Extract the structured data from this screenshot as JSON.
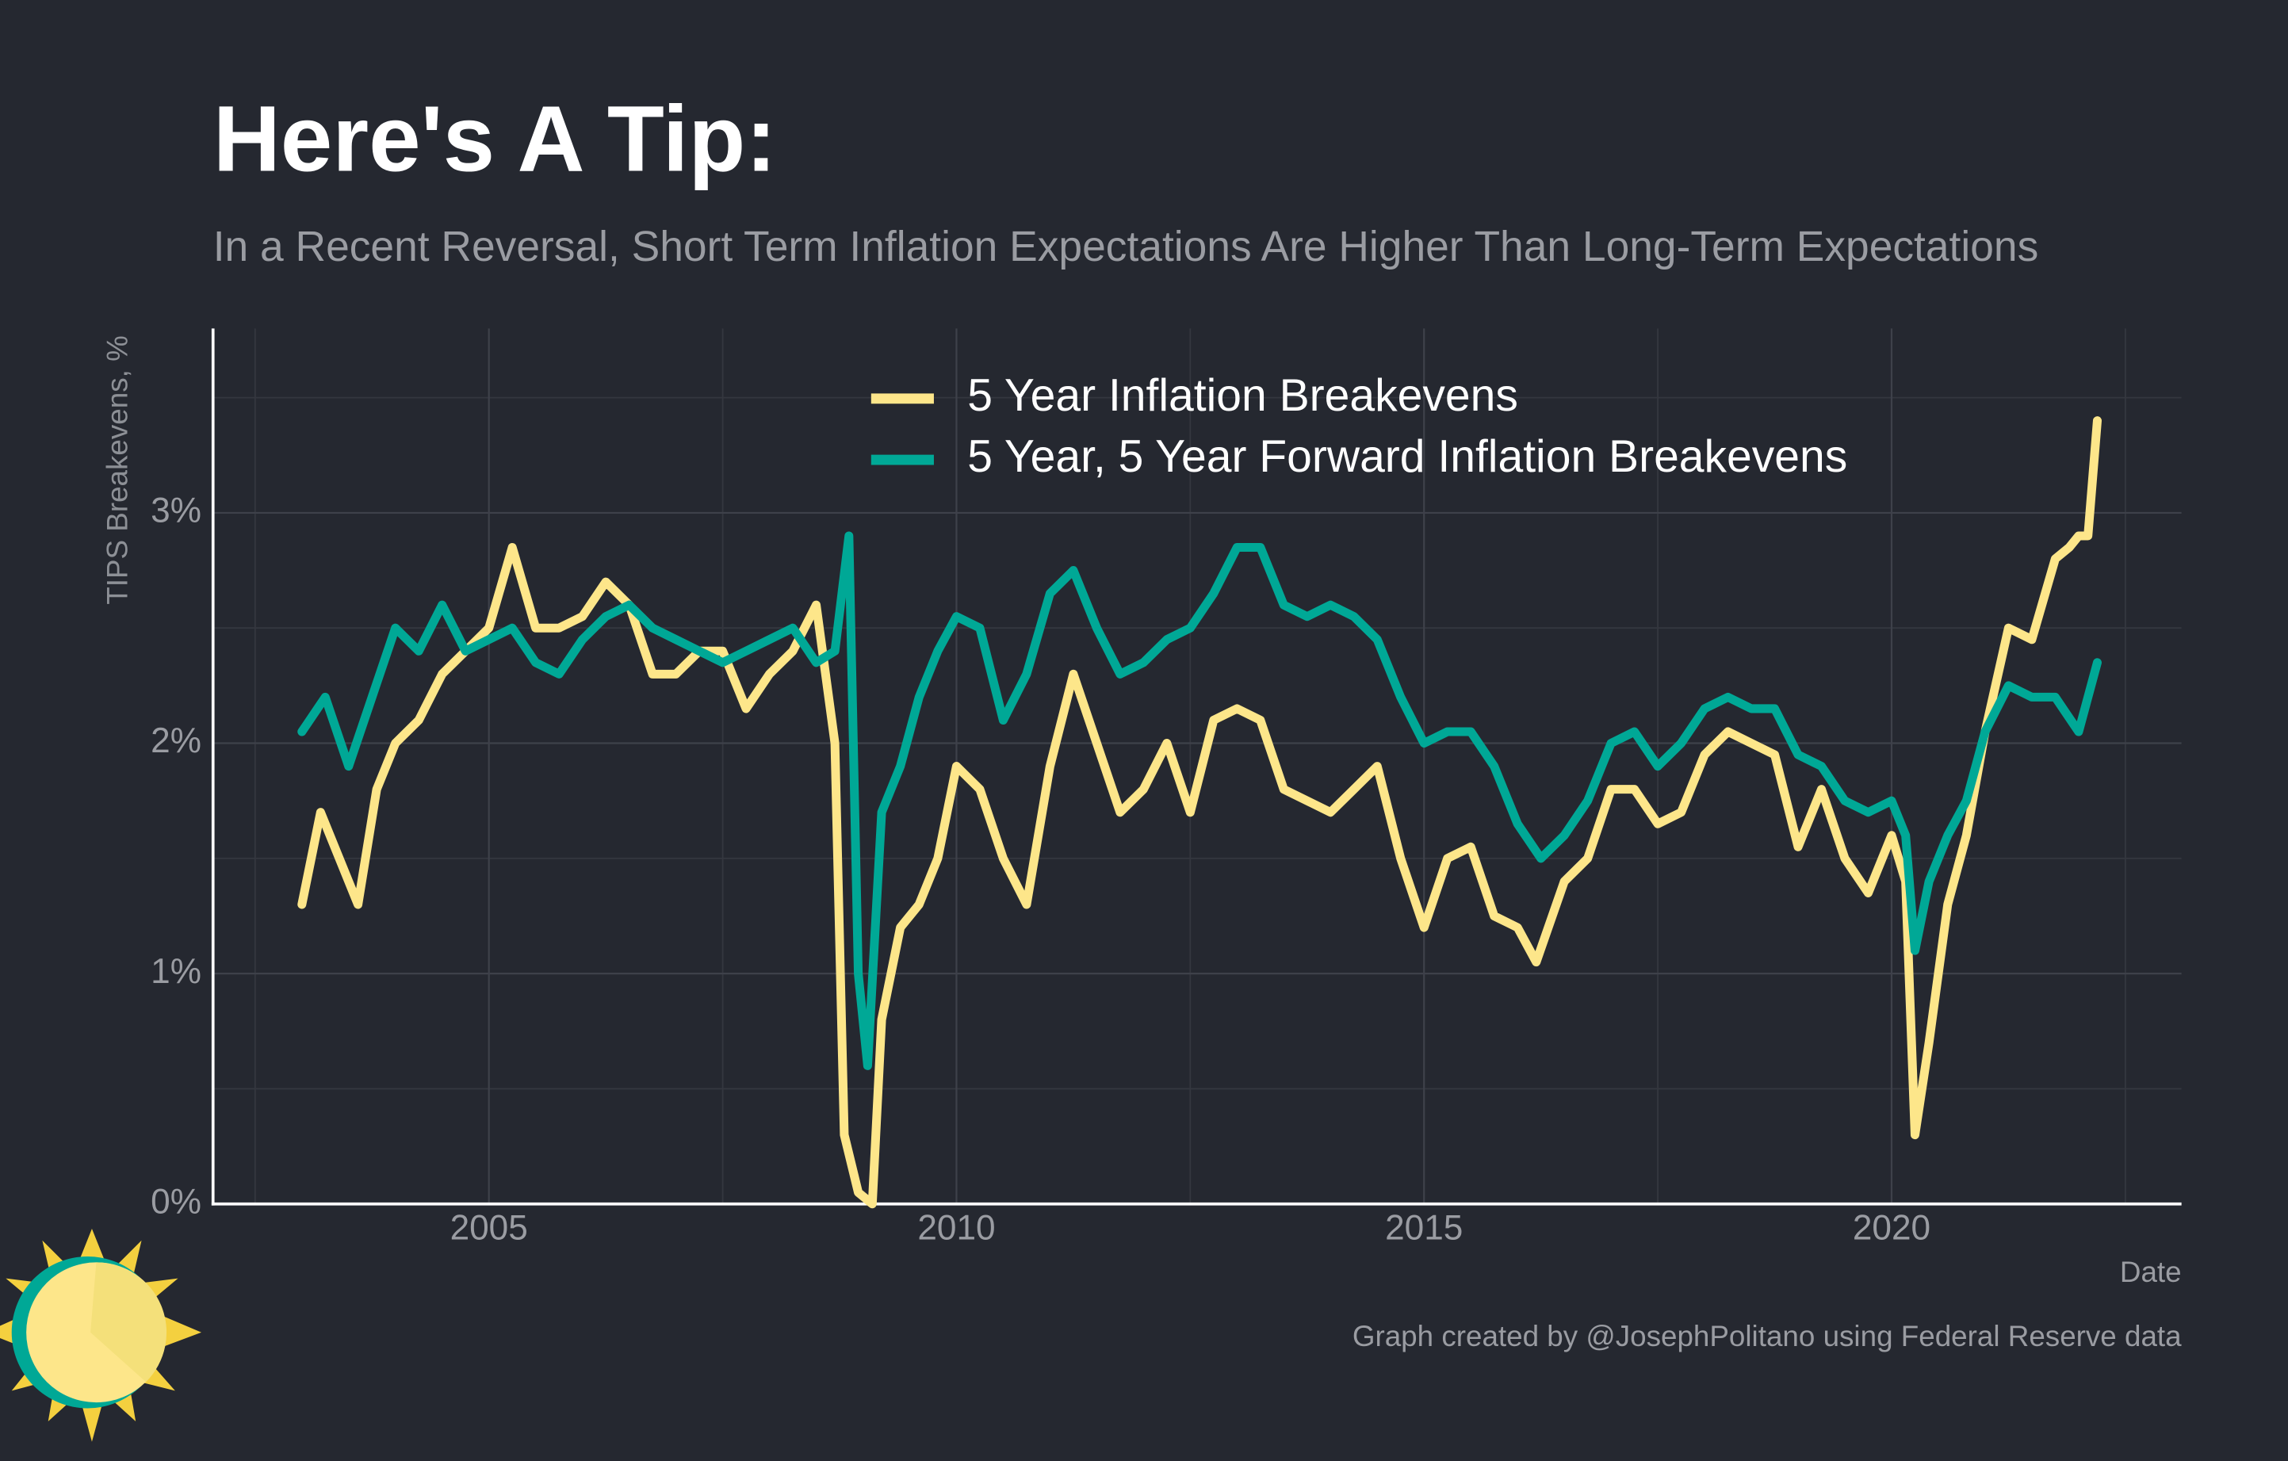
{
  "chart_data": {
    "type": "line",
    "title": "Here's A Tip:",
    "subtitle": "In a Recent Reversal, Short Term Inflation Expectations Are Higher Than Long-Term Expectations",
    "ylabel": "TIPS Breakevens, %",
    "xlabel": "Date",
    "caption": "Graph created by @JosephPolitano using Federal Reserve data",
    "legend": "top",
    "grid": true,
    "xlim": [
      2002.05,
      2023.1
    ],
    "ylim": [
      0,
      3.8
    ],
    "xticks": [
      2005,
      2010,
      2015,
      2020
    ],
    "yticks": [
      {
        "value": 0,
        "label": "0%"
      },
      {
        "value": 1,
        "label": "1%"
      },
      {
        "value": 2,
        "label": "2%"
      },
      {
        "value": 3,
        "label": "3%"
      }
    ],
    "minor_xticks": [
      2002.5,
      2007.5,
      2012.5,
      2017.5,
      2022.5
    ],
    "minor_yticks": [
      0.5,
      1.5,
      2.5,
      3.5
    ],
    "series": [
      {
        "name": "5 Year Inflation Breakevens",
        "color": "#fde68a",
        "x": [
          2003.0,
          2003.2,
          2003.4,
          2003.6,
          2003.8,
          2004.0,
          2004.25,
          2004.5,
          2004.75,
          2005.0,
          2005.25,
          2005.5,
          2005.75,
          2006.0,
          2006.25,
          2006.5,
          2006.75,
          2007.0,
          2007.25,
          2007.5,
          2007.75,
          2008.0,
          2008.25,
          2008.5,
          2008.7,
          2008.8,
          2008.95,
          2009.1,
          2009.2,
          2009.4,
          2009.6,
          2009.8,
          2010.0,
          2010.25,
          2010.5,
          2010.75,
          2011.0,
          2011.25,
          2011.5,
          2011.75,
          2012.0,
          2012.25,
          2012.5,
          2012.75,
          2013.0,
          2013.25,
          2013.5,
          2013.75,
          2014.0,
          2014.25,
          2014.5,
          2014.75,
          2015.0,
          2015.25,
          2015.5,
          2015.75,
          2016.0,
          2016.2,
          2016.5,
          2016.75,
          2017.0,
          2017.25,
          2017.5,
          2017.75,
          2018.0,
          2018.25,
          2018.5,
          2018.75,
          2019.0,
          2019.25,
          2019.5,
          2019.75,
          2020.0,
          2020.15,
          2020.25,
          2020.4,
          2020.6,
          2020.8,
          2021.0,
          2021.25,
          2021.5,
          2021.75,
          2021.9,
          2022.0,
          2022.1,
          2022.2
        ],
        "values": [
          1.3,
          1.7,
          1.5,
          1.3,
          1.8,
          2.0,
          2.1,
          2.3,
          2.4,
          2.5,
          2.85,
          2.5,
          2.5,
          2.55,
          2.7,
          2.6,
          2.3,
          2.3,
          2.4,
          2.4,
          2.15,
          2.3,
          2.4,
          2.6,
          2.0,
          0.3,
          0.05,
          0.0,
          0.8,
          1.2,
          1.3,
          1.5,
          1.9,
          1.8,
          1.5,
          1.3,
          1.9,
          2.3,
          2.0,
          1.7,
          1.8,
          2.0,
          1.7,
          2.1,
          2.15,
          2.1,
          1.8,
          1.75,
          1.7,
          1.8,
          1.9,
          1.5,
          1.2,
          1.5,
          1.55,
          1.25,
          1.2,
          1.05,
          1.4,
          1.5,
          1.8,
          1.8,
          1.65,
          1.7,
          1.95,
          2.05,
          2.0,
          1.95,
          1.55,
          1.8,
          1.5,
          1.35,
          1.6,
          1.4,
          0.3,
          0.7,
          1.3,
          1.6,
          2.05,
          2.5,
          2.45,
          2.8,
          2.85,
          2.9,
          2.9,
          3.4
        ]
      },
      {
        "name": "5 Year, 5 Year Forward Inflation Breakevens",
        "color": "#00a896",
        "x": [
          2003.0,
          2003.25,
          2003.5,
          2003.75,
          2004.0,
          2004.25,
          2004.5,
          2004.75,
          2005.0,
          2005.25,
          2005.5,
          2005.75,
          2006.0,
          2006.25,
          2006.5,
          2006.75,
          2007.0,
          2007.25,
          2007.5,
          2007.75,
          2008.0,
          2008.25,
          2008.5,
          2008.7,
          2008.85,
          2008.95,
          2009.05,
          2009.2,
          2009.4,
          2009.6,
          2009.8,
          2010.0,
          2010.25,
          2010.5,
          2010.75,
          2011.0,
          2011.25,
          2011.5,
          2011.75,
          2012.0,
          2012.25,
          2012.5,
          2012.75,
          2013.0,
          2013.25,
          2013.5,
          2013.75,
          2014.0,
          2014.25,
          2014.5,
          2014.75,
          2015.0,
          2015.25,
          2015.5,
          2015.75,
          2016.0,
          2016.25,
          2016.5,
          2016.75,
          2017.0,
          2017.25,
          2017.5,
          2017.75,
          2018.0,
          2018.25,
          2018.5,
          2018.75,
          2019.0,
          2019.25,
          2019.5,
          2019.75,
          2020.0,
          2020.15,
          2020.25,
          2020.4,
          2020.6,
          2020.8,
          2021.0,
          2021.25,
          2021.5,
          2021.75,
          2022.0,
          2022.2
        ],
        "values": [
          2.05,
          2.2,
          1.9,
          2.2,
          2.5,
          2.4,
          2.6,
          2.4,
          2.45,
          2.5,
          2.35,
          2.3,
          2.45,
          2.55,
          2.6,
          2.5,
          2.45,
          2.4,
          2.35,
          2.4,
          2.45,
          2.5,
          2.35,
          2.4,
          2.9,
          1.0,
          0.6,
          1.7,
          1.9,
          2.2,
          2.4,
          2.55,
          2.5,
          2.1,
          2.3,
          2.65,
          2.75,
          2.5,
          2.3,
          2.35,
          2.45,
          2.5,
          2.65,
          2.85,
          2.85,
          2.6,
          2.55,
          2.6,
          2.55,
          2.45,
          2.2,
          2.0,
          2.05,
          2.05,
          1.9,
          1.65,
          1.5,
          1.6,
          1.75,
          2.0,
          2.05,
          1.9,
          2.0,
          2.15,
          2.2,
          2.15,
          2.15,
          1.95,
          1.9,
          1.75,
          1.7,
          1.75,
          1.6,
          1.1,
          1.4,
          1.6,
          1.75,
          2.05,
          2.25,
          2.2,
          2.2,
          2.05,
          2.35
        ]
      }
    ]
  }
}
